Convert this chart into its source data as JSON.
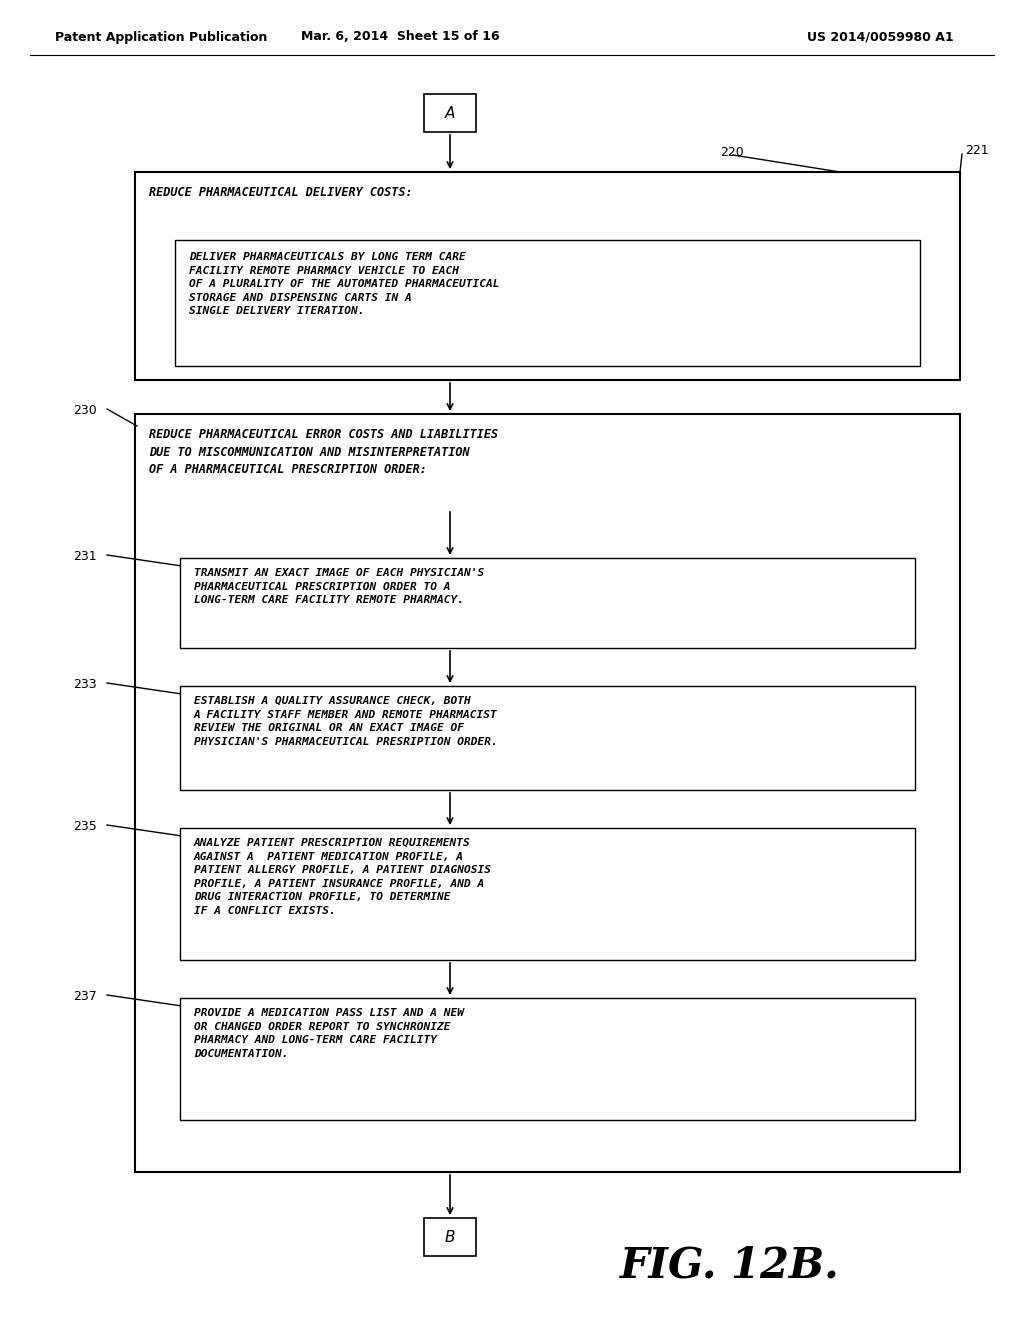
{
  "bg_color": "#ffffff",
  "header_left": "Patent Application Publication",
  "header_mid": "Mar. 6, 2014  Sheet 15 of 16",
  "header_right": "US 2014/0059980 A1",
  "fig_label": "FIG. 12B.",
  "connector_top_label": "A",
  "connector_bot_label": "B",
  "label_220": "220",
  "label_221": "221",
  "label_230": "230",
  "label_231": "231",
  "label_233": "233",
  "label_235": "235",
  "label_237": "237",
  "outer_box_title": "REDUCE PHARMACEUTICAL DELIVERY COSTS:",
  "inner_box_text": "DELIVER PHARMACEUTICALS BY LONG TERM CARE\nFACILITY REMOTE PHARMACY VEHICLE TO EACH\nOF A PLURALITY OF THE AUTOMATED PHARMACEUTICAL\nSTORAGE AND DISPENSING CARTS IN A\nSINGLE DELIVERY ITERATION.",
  "box2_title": "REDUCE PHARMACEUTICAL ERROR COSTS AND LIABILITIES\nDUE TO MISCOMMUNICATION AND MISINTERPRETATION\nOF A PHARMACEUTICAL PRESCRIPTION ORDER:",
  "box3_text": "TRANSMIT AN EXACT IMAGE OF EACH PHYSICIAN'S\nPHARMACEUTICAL PRESCRIPTION ORDER TO A\nLONG-TERM CARE FACILITY REMOTE PHARMACY.",
  "box4_text": "ESTABLISH A QUALITY ASSURANCE CHECK, BOTH\nA FACILITY STAFF MEMBER AND REMOTE PHARMACIST\nREVIEW THE ORIGINAL OR AN EXACT IMAGE OF\nPHYSICIAN'S PHARMACEUTICAL PRESRIPTION ORDER.",
  "box5_text": "ANALYZE PATIENT PRESCRIPTION REQUIREMENTS\nAGAINST A  PATIENT MEDICATION PROFILE, A\nPATIENT ALLERGY PROFILE, A PATIENT DIAGNOSIS\nPROFILE, A PATIENT INSURANCE PROFILE, AND A\nDRUG INTERACTION PROFILE, TO DETERMINE\nIF A CONFLICT EXISTS.",
  "box6_text": "PROVIDE A MEDICATION PASS LIST AND A NEW\nOR CHANGED ORDER REPORT TO SYNCHRONIZE\nPHARMACY AND LONG-TERM CARE FACILITY\nDOCUMENTATION."
}
